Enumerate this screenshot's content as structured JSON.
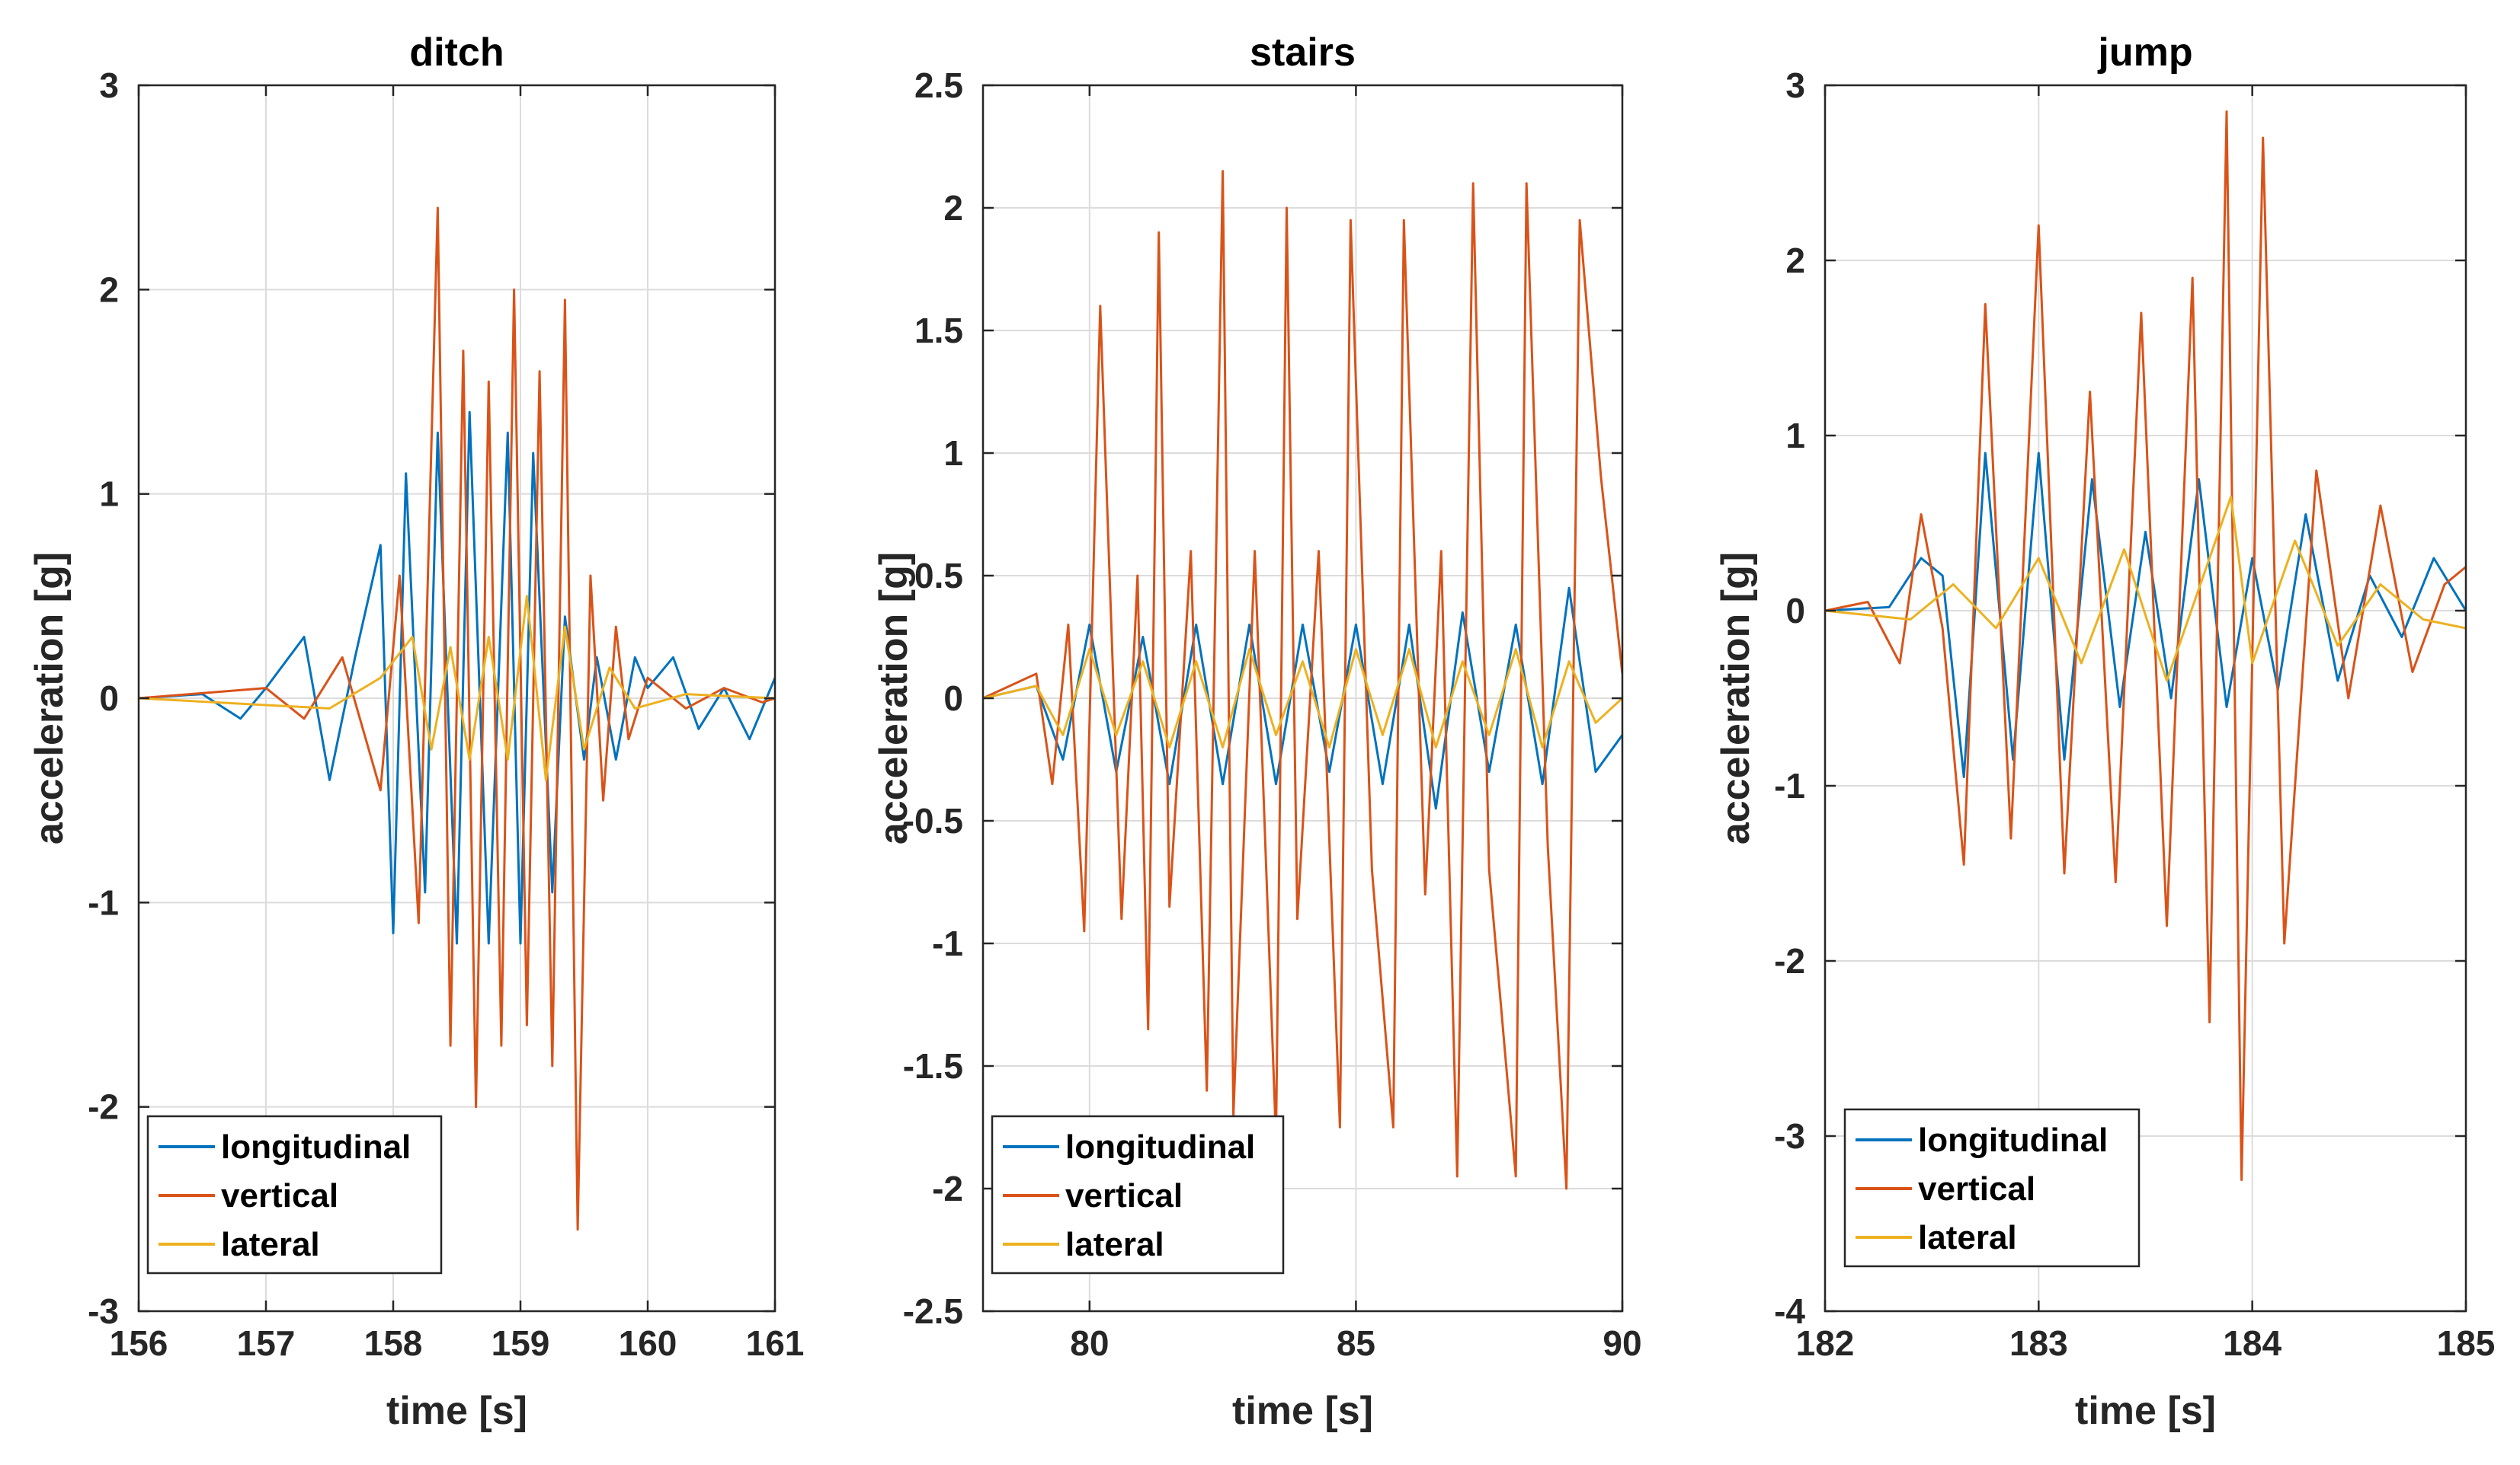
{
  "colors": {
    "longitudinal": "#0072BD",
    "vertical": "#D95319",
    "lateral": "#EDB120"
  },
  "chart_data": [
    {
      "type": "line",
      "title": "ditch",
      "xlabel": "time [s]",
      "ylabel": "acceleration [g]",
      "xlim": [
        156,
        161
      ],
      "ylim": [
        -3,
        3
      ],
      "xticks": [
        156,
        157,
        158,
        159,
        160,
        161
      ],
      "xtick_labels": [
        "156",
        "157",
        "158",
        "159",
        "160",
        "161"
      ],
      "yticks": [
        -3,
        -2,
        -1,
        0,
        1,
        2,
        3
      ],
      "ytick_labels": [
        "-3",
        "-2",
        "-1",
        "0",
        "1",
        "2",
        "3"
      ],
      "grid": true,
      "legend_position": "bottom-left",
      "series": [
        {
          "name": "longitudinal",
          "x": [
            156.0,
            156.5,
            156.8,
            157.0,
            157.3,
            157.5,
            157.7,
            157.9,
            158.0,
            158.1,
            158.25,
            158.35,
            158.5,
            158.6,
            158.75,
            158.9,
            159.0,
            159.1,
            159.25,
            159.35,
            159.5,
            159.6,
            159.75,
            159.9,
            160.0,
            160.2,
            160.4,
            160.6,
            160.8,
            161.0
          ],
          "y": [
            0.0,
            0.02,
            -0.1,
            0.05,
            0.3,
            -0.4,
            0.2,
            0.75,
            -1.15,
            1.1,
            -0.95,
            1.3,
            -1.2,
            1.4,
            -1.2,
            1.3,
            -1.2,
            1.2,
            -0.95,
            0.4,
            -0.3,
            0.2,
            -0.3,
            0.2,
            0.05,
            0.2,
            -0.15,
            0.05,
            -0.2,
            0.1
          ]
        },
        {
          "name": "vertical",
          "x": [
            156.0,
            157.0,
            157.3,
            157.6,
            157.9,
            158.05,
            158.2,
            158.35,
            158.45,
            158.55,
            158.65,
            158.75,
            158.85,
            158.95,
            159.05,
            159.15,
            159.25,
            159.35,
            159.45,
            159.55,
            159.65,
            159.75,
            159.85,
            160.0,
            160.3,
            160.6,
            160.9,
            161.0
          ],
          "y": [
            0.0,
            0.05,
            -0.1,
            0.2,
            -0.45,
            0.6,
            -1.1,
            2.4,
            -1.7,
            1.7,
            -2.0,
            1.55,
            -1.7,
            2.0,
            -1.6,
            1.6,
            -1.8,
            1.95,
            -2.6,
            0.6,
            -0.5,
            0.35,
            -0.2,
            0.1,
            -0.05,
            0.05,
            -0.02,
            0.0
          ]
        },
        {
          "name": "lateral",
          "x": [
            156.0,
            157.5,
            157.9,
            158.15,
            158.3,
            158.45,
            158.6,
            158.75,
            158.9,
            159.05,
            159.2,
            159.35,
            159.5,
            159.7,
            159.9,
            160.3,
            161.0
          ],
          "y": [
            0.0,
            -0.05,
            0.1,
            0.3,
            -0.25,
            0.25,
            -0.3,
            0.3,
            -0.3,
            0.5,
            -0.4,
            0.35,
            -0.25,
            0.15,
            -0.05,
            0.02,
            0.0
          ]
        }
      ]
    },
    {
      "type": "line",
      "title": "stairs",
      "xlabel": "time [s]",
      "ylabel": "acceleration [g]",
      "xlim": [
        78,
        90
      ],
      "ylim": [
        -2.5,
        2.5
      ],
      "xticks": [
        80,
        85,
        90
      ],
      "xtick_labels": [
        "80",
        "85",
        "90"
      ],
      "yticks": [
        -2.5,
        -2,
        -1.5,
        -1,
        -0.5,
        0,
        0.5,
        1,
        1.5,
        2,
        2.5
      ],
      "ytick_labels": [
        "-2.5",
        "-2",
        "-1.5",
        "-1",
        "-0.5",
        "0",
        "0.5",
        "1",
        "1.5",
        "2",
        "2.5"
      ],
      "grid": true,
      "legend_position": "bottom-left",
      "series": [
        {
          "name": "longitudinal",
          "x": [
            78.0,
            79.0,
            79.5,
            80.0,
            80.5,
            81.0,
            81.5,
            82.0,
            82.5,
            83.0,
            83.5,
            84.0,
            84.5,
            85.0,
            85.5,
            86.0,
            86.5,
            87.0,
            87.5,
            88.0,
            88.5,
            89.0,
            89.5,
            90.0
          ],
          "y": [
            0.0,
            0.05,
            -0.25,
            0.3,
            -0.3,
            0.25,
            -0.35,
            0.3,
            -0.35,
            0.3,
            -0.35,
            0.3,
            -0.3,
            0.3,
            -0.35,
            0.3,
            -0.45,
            0.35,
            -0.3,
            0.3,
            -0.35,
            0.45,
            -0.3,
            -0.15
          ]
        },
        {
          "name": "vertical",
          "x": [
            78.0,
            79.0,
            79.3,
            79.6,
            79.9,
            80.2,
            80.6,
            80.9,
            81.1,
            81.3,
            81.5,
            81.9,
            82.2,
            82.5,
            82.7,
            83.1,
            83.5,
            83.7,
            83.9,
            84.3,
            84.7,
            84.9,
            85.3,
            85.7,
            85.9,
            86.3,
            86.6,
            86.9,
            87.2,
            87.5,
            88.0,
            88.2,
            88.6,
            88.95,
            89.2,
            89.6,
            90.0
          ],
          "y": [
            0.0,
            0.1,
            -0.35,
            0.3,
            -0.95,
            1.6,
            -0.9,
            0.5,
            -1.35,
            1.9,
            -0.85,
            0.6,
            -1.6,
            2.15,
            -1.7,
            0.6,
            -1.8,
            2.0,
            -0.9,
            0.6,
            -1.75,
            1.95,
            -0.7,
            -1.75,
            1.95,
            -0.8,
            0.6,
            -1.95,
            2.1,
            -0.7,
            -1.95,
            2.1,
            -0.6,
            -2.0,
            1.95,
            0.9,
            0.1
          ]
        },
        {
          "name": "lateral",
          "x": [
            78.0,
            79.0,
            79.5,
            80.0,
            80.5,
            81.0,
            81.5,
            82.0,
            82.5,
            83.0,
            83.5,
            84.0,
            84.5,
            85.0,
            85.5,
            86.0,
            86.5,
            87.0,
            87.5,
            88.0,
            88.5,
            89.0,
            89.5,
            90.0
          ],
          "y": [
            0.0,
            0.05,
            -0.15,
            0.2,
            -0.15,
            0.15,
            -0.2,
            0.15,
            -0.2,
            0.2,
            -0.15,
            0.15,
            -0.2,
            0.2,
            -0.15,
            0.2,
            -0.2,
            0.15,
            -0.15,
            0.2,
            -0.2,
            0.15,
            -0.1,
            0.0
          ]
        }
      ]
    },
    {
      "type": "line",
      "title": "jump",
      "xlabel": "time [s]",
      "ylabel": "acceleration [g]",
      "xlim": [
        182,
        185
      ],
      "ylim": [
        -4,
        3
      ],
      "xticks": [
        182,
        183,
        184,
        185
      ],
      "xtick_labels": [
        "182",
        "183",
        "184",
        "185"
      ],
      "yticks": [
        -4,
        -3,
        -2,
        -1,
        0,
        1,
        2,
        3
      ],
      "ytick_labels": [
        "-4",
        "-3",
        "-2",
        "-1",
        "0",
        "1",
        "2",
        "3"
      ],
      "grid": true,
      "legend_position": "bottom-left",
      "series": [
        {
          "name": "longitudinal",
          "x": [
            182.0,
            182.3,
            182.45,
            182.55,
            182.65,
            182.75,
            182.88,
            183.0,
            183.12,
            183.25,
            183.38,
            183.5,
            183.62,
            183.75,
            183.88,
            184.0,
            184.12,
            184.25,
            184.4,
            184.55,
            184.7,
            184.85,
            185.0
          ],
          "y": [
            0.0,
            0.02,
            0.3,
            0.2,
            -0.95,
            0.9,
            -0.85,
            0.9,
            -0.85,
            0.75,
            -0.55,
            0.45,
            -0.5,
            0.75,
            -0.55,
            0.3,
            -0.45,
            0.55,
            -0.4,
            0.2,
            -0.15,
            0.3,
            0.0
          ]
        },
        {
          "name": "vertical",
          "x": [
            182.0,
            182.2,
            182.35,
            182.45,
            182.55,
            182.65,
            182.75,
            182.87,
            183.0,
            183.12,
            183.24,
            183.36,
            183.48,
            183.6,
            183.72,
            183.8,
            183.88,
            183.95,
            184.05,
            184.15,
            184.3,
            184.45,
            184.6,
            184.75,
            184.9,
            185.0
          ],
          "y": [
            0.0,
            0.05,
            -0.3,
            0.55,
            -0.1,
            -1.45,
            1.75,
            -1.3,
            2.2,
            -1.5,
            1.25,
            -1.55,
            1.7,
            -1.8,
            1.9,
            -2.35,
            2.85,
            -3.25,
            2.7,
            -1.9,
            0.8,
            -0.5,
            0.6,
            -0.35,
            0.15,
            0.25
          ]
        },
        {
          "name": "lateral",
          "x": [
            182.0,
            182.4,
            182.6,
            182.8,
            183.0,
            183.2,
            183.4,
            183.6,
            183.8,
            183.9,
            184.0,
            184.2,
            184.4,
            184.6,
            184.8,
            185.0
          ],
          "y": [
            0.0,
            -0.05,
            0.15,
            -0.1,
            0.3,
            -0.3,
            0.35,
            -0.4,
            0.3,
            0.65,
            -0.3,
            0.4,
            -0.2,
            0.15,
            -0.05,
            -0.1
          ]
        }
      ]
    }
  ]
}
